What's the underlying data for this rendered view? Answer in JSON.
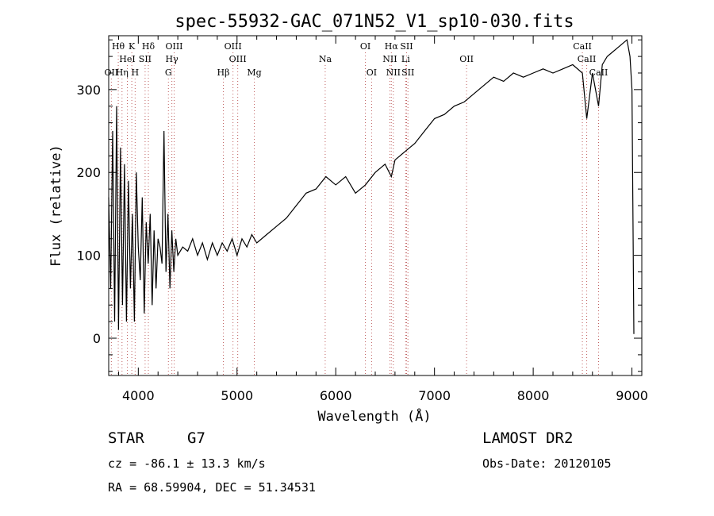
{
  "chart_data": {
    "type": "line",
    "title": "spec-55932-GAC_071N52_V1_sp10-030.fits",
    "xlabel": "Wavelength (Å)",
    "ylabel": "Flux (relative)",
    "xlim": [
      3700,
      9100
    ],
    "ylim": [
      -45,
      365
    ],
    "x_ticks": [
      4000,
      5000,
      6000,
      7000,
      8000,
      9000
    ],
    "y_ticks": [
      0,
      100,
      200,
      300
    ],
    "grid": false,
    "series": [
      {
        "color": "#000000",
        "x": [
          3700,
          3720,
          3740,
          3760,
          3780,
          3800,
          3820,
          3840,
          3860,
          3880,
          3900,
          3920,
          3940,
          3960,
          3980,
          4000,
          4020,
          4040,
          4060,
          4080,
          4100,
          4120,
          4140,
          4160,
          4180,
          4200,
          4220,
          4240,
          4260,
          4280,
          4300,
          4320,
          4340,
          4360,
          4380,
          4400,
          4450,
          4500,
          4550,
          4600,
          4650,
          4700,
          4750,
          4800,
          4850,
          4900,
          4950,
          5000,
          5050,
          5100,
          5150,
          5200,
          5300,
          5400,
          5500,
          5600,
          5700,
          5800,
          5900,
          6000,
          6100,
          6200,
          6300,
          6400,
          6500,
          6563,
          6600,
          6700,
          6800,
          6900,
          7000,
          7100,
          7200,
          7300,
          7400,
          7500,
          7600,
          7700,
          7800,
          7900,
          8000,
          8100,
          8200,
          8300,
          8400,
          8498,
          8542,
          8600,
          8662,
          8700,
          8750,
          8800,
          8850,
          8900,
          8950,
          8980,
          9000,
          9020
        ],
        "y": [
          170,
          60,
          250,
          20,
          280,
          10,
          230,
          40,
          210,
          20,
          190,
          60,
          150,
          20,
          200,
          110,
          70,
          170,
          30,
          140,
          90,
          150,
          40,
          130,
          60,
          120,
          110,
          90,
          250,
          80,
          150,
          60,
          130,
          80,
          120,
          100,
          110,
          105,
          120,
          100,
          115,
          95,
          115,
          100,
          115,
          105,
          120,
          100,
          120,
          110,
          125,
          115,
          125,
          135,
          145,
          160,
          175,
          180,
          195,
          185,
          195,
          175,
          185,
          200,
          210,
          195,
          215,
          225,
          235,
          250,
          265,
          270,
          280,
          285,
          295,
          305,
          315,
          310,
          320,
          315,
          320,
          325,
          320,
          325,
          330,
          320,
          265,
          320,
          280,
          330,
          340,
          345,
          350,
          355,
          360,
          340,
          300,
          5
        ]
      }
    ],
    "line_ids": [
      {
        "name": "Hθ",
        "x": 3797,
        "row": 1
      },
      {
        "name": "K",
        "x": 3934,
        "row": 1
      },
      {
        "name": "Hδ",
        "x": 4102,
        "row": 1
      },
      {
        "name": "OIII",
        "x": 4363,
        "row": 1
      },
      {
        "name": "OIII",
        "x": 4959,
        "row": 1
      },
      {
        "name": "OI",
        "x": 6300,
        "row": 1
      },
      {
        "name": "Hα",
        "x": 6563,
        "row": 1
      },
      {
        "name": "SII",
        "x": 6717,
        "row": 1
      },
      {
        "name": "CaII",
        "x": 8498,
        "row": 1
      },
      {
        "name": "HeI",
        "x": 3889,
        "row": 2
      },
      {
        "name": "SII",
        "x": 4069,
        "row": 2
      },
      {
        "name": "Hγ",
        "x": 4340,
        "row": 2
      },
      {
        "name": "OIII",
        "x": 5007,
        "row": 2
      },
      {
        "name": "Na",
        "x": 5893,
        "row": 2
      },
      {
        "name": "NII",
        "x": 6548,
        "row": 2
      },
      {
        "name": "Li",
        "x": 6708,
        "row": 2
      },
      {
        "name": "OII",
        "x": 7325,
        "row": 2
      },
      {
        "name": "CaII",
        "x": 8542,
        "row": 2
      },
      {
        "name": "OII",
        "x": 3727,
        "row": 3
      },
      {
        "name": "Hη",
        "x": 3835,
        "row": 3
      },
      {
        "name": "H",
        "x": 3968,
        "row": 3
      },
      {
        "name": "G",
        "x": 4305,
        "row": 3
      },
      {
        "name": "Hβ",
        "x": 4861,
        "row": 3
      },
      {
        "name": "Mg",
        "x": 5175,
        "row": 3
      },
      {
        "name": "OI",
        "x": 6363,
        "row": 3
      },
      {
        "name": "NII",
        "x": 6583,
        "row": 3
      },
      {
        "name": "SII",
        "x": 6731,
        "row": 3
      },
      {
        "name": "CaII",
        "x": 8662,
        "row": 3
      }
    ]
  },
  "info": {
    "object_class": "STAR",
    "subclass": "G7",
    "survey": "LAMOST DR2",
    "velocity": "cz = -86.1 ± 13.3 km/s",
    "obs_date": "Obs-Date: 20120105",
    "coords": "RA =  68.59904, DEC =  51.34531"
  }
}
